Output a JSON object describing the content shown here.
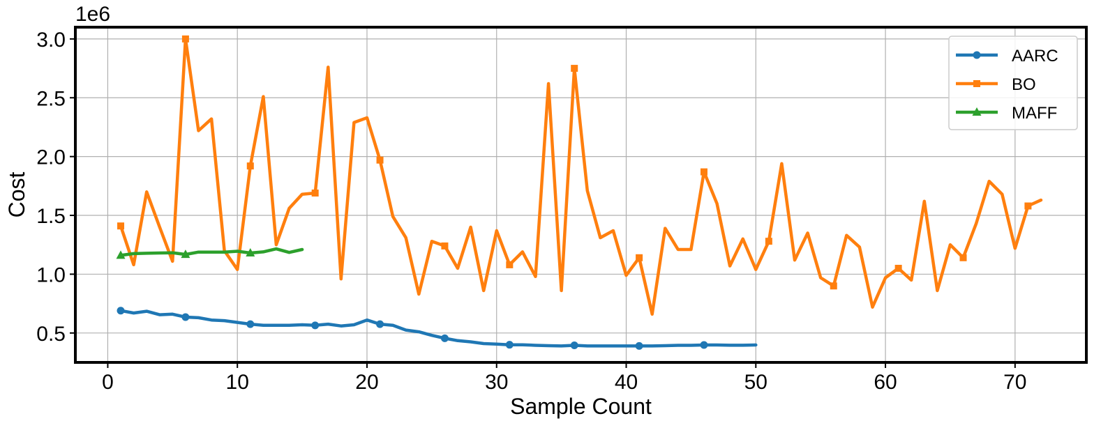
{
  "chart_data": {
    "type": "line",
    "xlabel": "Sample Count",
    "ylabel": "Cost",
    "y_offset_text": "1e6",
    "y_scale": 1000000,
    "xlim": [
      -2.5,
      75.5
    ],
    "ylim": [
      0.25,
      3.1
    ],
    "x_ticks": [
      0,
      10,
      20,
      30,
      40,
      50,
      60,
      70
    ],
    "x_tick_labels": [
      "0",
      "10",
      "20",
      "30",
      "40",
      "50",
      "60",
      "70"
    ],
    "y_ticks": [
      0.5,
      1.0,
      1.5,
      2.0,
      2.5,
      3.0
    ],
    "y_tick_labels": [
      "0.5",
      "1.0",
      "1.5",
      "2.0",
      "2.5",
      "3.0"
    ],
    "grid": true,
    "legend_position": "top-right",
    "series": [
      {
        "name": "AARC",
        "color": "#1f77b4",
        "marker": "circle",
        "x": [
          1,
          2,
          3,
          4,
          5,
          6,
          7,
          8,
          9,
          10,
          11,
          12,
          13,
          14,
          15,
          16,
          17,
          18,
          19,
          20,
          21,
          22,
          23,
          24,
          25,
          26,
          27,
          28,
          29,
          30,
          31,
          32,
          33,
          34,
          35,
          36,
          37,
          38,
          39,
          40,
          41,
          42,
          43,
          44,
          45,
          46,
          47,
          48,
          49,
          50
        ],
        "values": [
          0.69,
          0.67,
          0.685,
          0.655,
          0.66,
          0.635,
          0.63,
          0.61,
          0.605,
          0.59,
          0.575,
          0.565,
          0.565,
          0.565,
          0.57,
          0.565,
          0.575,
          0.56,
          0.57,
          0.61,
          0.575,
          0.565,
          0.525,
          0.51,
          0.48,
          0.455,
          0.435,
          0.425,
          0.41,
          0.405,
          0.4,
          0.4,
          0.395,
          0.392,
          0.39,
          0.395,
          0.39,
          0.39,
          0.39,
          0.39,
          0.39,
          0.39,
          0.392,
          0.395,
          0.395,
          0.398,
          0.398,
          0.396,
          0.396,
          0.398
        ]
      },
      {
        "name": "BO",
        "color": "#ff7f0e",
        "marker": "square",
        "x": [
          1,
          2,
          3,
          4,
          5,
          6,
          7,
          8,
          9,
          10,
          11,
          12,
          13,
          14,
          15,
          16,
          17,
          18,
          19,
          20,
          21,
          22,
          23,
          24,
          25,
          26,
          27,
          28,
          29,
          30,
          31,
          32,
          33,
          34,
          35,
          36,
          37,
          38,
          39,
          40,
          41,
          42,
          43,
          44,
          45,
          46,
          47,
          48,
          49,
          50,
          51,
          52,
          53,
          54,
          55,
          56,
          57,
          58,
          59,
          60,
          61,
          62,
          63,
          64,
          65,
          66,
          67,
          68,
          69,
          70,
          71,
          72
        ],
        "values": [
          1.41,
          1.08,
          1.7,
          1.4,
          1.11,
          3.0,
          2.22,
          2.32,
          1.2,
          1.04,
          1.92,
          2.51,
          1.25,
          1.56,
          1.68,
          1.69,
          2.76,
          0.96,
          2.29,
          2.33,
          1.97,
          1.49,
          1.31,
          0.83,
          1.28,
          1.24,
          1.05,
          1.4,
          0.86,
          1.37,
          1.08,
          1.19,
          0.98,
          2.62,
          0.86,
          2.75,
          1.71,
          1.31,
          1.37,
          0.99,
          1.14,
          0.66,
          1.39,
          1.21,
          1.21,
          1.87,
          1.6,
          1.07,
          1.3,
          1.04,
          1.28,
          1.94,
          1.12,
          1.35,
          0.97,
          0.9,
          1.33,
          1.23,
          0.72,
          0.97,
          1.05,
          0.95,
          1.62,
          0.86,
          1.25,
          1.14,
          1.43,
          1.79,
          1.68,
          1.22,
          1.58,
          1.63
        ]
      },
      {
        "name": "MAFF",
        "color": "#2ca02c",
        "marker": "triangle",
        "x": [
          1,
          2,
          3,
          4,
          5,
          6,
          7,
          8,
          9,
          10,
          11,
          12,
          13,
          14,
          15
        ],
        "values": [
          1.16,
          1.175,
          1.178,
          1.18,
          1.182,
          1.168,
          1.188,
          1.188,
          1.188,
          1.195,
          1.18,
          1.19,
          1.215,
          1.185,
          1.21
        ]
      }
    ]
  }
}
